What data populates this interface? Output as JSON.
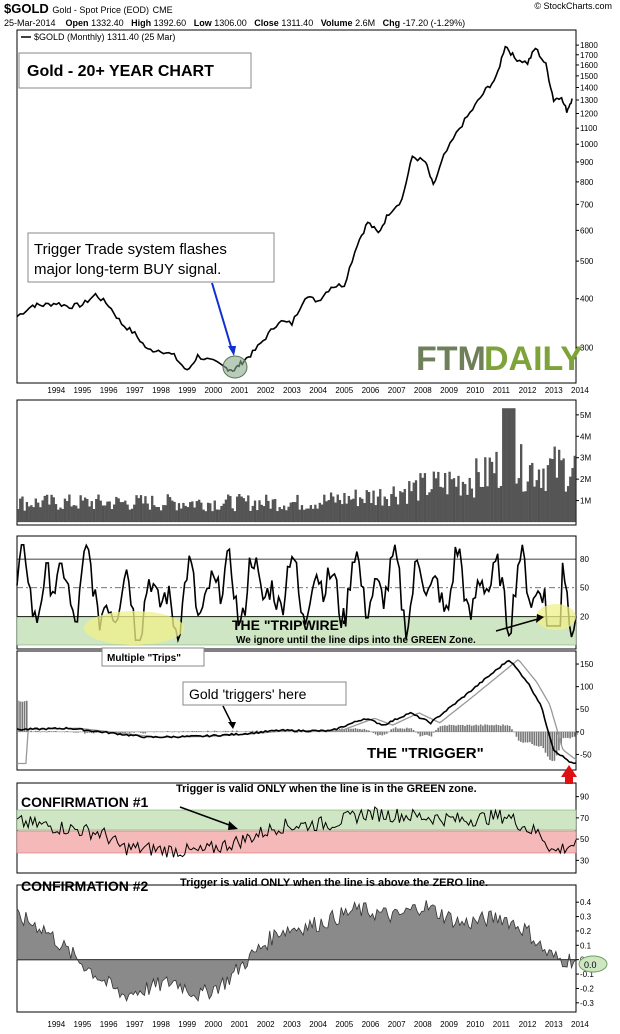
{
  "header": {
    "symbol": "$GOLD",
    "name": "Gold - Spot Price (EOD)",
    "exchange": "CME",
    "date": "25-Mar-2014",
    "open_label": "Open",
    "open": "1332.40",
    "high_label": "High",
    "high": "1392.60",
    "low_label": "Low",
    "low": "1306.00",
    "close_label": "Close",
    "close": "1311.40",
    "volume_label": "Volume",
    "volume": "2.6M",
    "chg_label": "Chg",
    "chg": "-17.20 (-1.29%)",
    "copyright": "© StockCharts.com"
  },
  "legend": "$GOLD (Monthly) 1311.40 (25 Mar)",
  "title_box": "Gold - 20+ YEAR CHART",
  "annotations": {
    "buy_signal": [
      "Trigger Trade system flashes",
      "major long-term BUY signal."
    ],
    "tripwire": "THE \"TRIPWIRE\"",
    "tripwire_note": "We ignore until the line dips into the GREEN Zone.",
    "multiple_trips": "Multiple \"Trips\"",
    "gold_triggers": "Gold 'triggers' here",
    "trigger": "THE \"TRIGGER\"",
    "conf1": "CONFIRMATION #1",
    "conf1_note": "Trigger is valid ONLY when the line is in the GREEN zone.",
    "conf2": "CONFIRMATION #2",
    "conf2_note": "Trigger is valid ONLY when the line is above the ZERO line."
  },
  "logo": {
    "part1": "FTM",
    "part2": "DAILY",
    "color1": "#6e7f5a",
    "color2": "#7da33a"
  },
  "colors": {
    "price": "#000000",
    "green_zone": "#cfe6c4",
    "red_zone": "#f6b9b9",
    "highlight": "#f0f08a",
    "buy_circle": "#8aa88a",
    "arrow_blue": "#1030d0",
    "arrow_red": "#e01010"
  },
  "chart_data": [
    {
      "type": "line",
      "name": "price",
      "series": [
        {
          "name": "$GOLD (Monthly)",
          "x": [
            1993.0,
            1993.6,
            1994.0,
            1994.5,
            1995.0,
            1995.5,
            1996.0,
            1996.5,
            1997.0,
            1997.5,
            1998.0,
            1998.5,
            1999.0,
            1999.5,
            1999.9,
            2000.5,
            2001.0,
            2001.3,
            2001.6,
            2002.0,
            2002.5,
            2003.0,
            2003.5,
            2004.0,
            2004.5,
            2005.0,
            2005.5,
            2006.0,
            2006.4,
            2006.8,
            2007.2,
            2007.7,
            2008.1,
            2008.6,
            2008.9,
            2009.3,
            2009.9,
            2010.4,
            2010.9,
            2011.3,
            2011.65,
            2012.0,
            2012.5,
            2012.8,
            2013.2,
            2013.5,
            2013.75,
            2014.0,
            2014.2
          ],
          "values": [
            360,
            385,
            385,
            390,
            382,
            386,
            410,
            385,
            345,
            325,
            295,
            295,
            285,
            260,
            285,
            275,
            265,
            262,
            275,
            290,
            318,
            350,
            345,
            405,
            395,
            430,
            435,
            555,
            630,
            590,
            665,
            720,
            930,
            900,
            780,
            930,
            1100,
            1230,
            1380,
            1480,
            1800,
            1670,
            1620,
            1770,
            1600,
            1300,
            1330,
            1220,
            1311
          ]
        }
      ],
      "x_ticks": [
        "1994",
        "1995",
        "1996",
        "1997",
        "1998",
        "1999",
        "2000",
        "2001",
        "2002",
        "2003",
        "2004",
        "2005",
        "2006",
        "2007",
        "2008",
        "2009",
        "2010",
        "2011",
        "2012",
        "2013",
        "2014"
      ],
      "y_ticks": [
        300,
        400,
        500,
        600,
        700,
        800,
        900,
        1000,
        1100,
        1200,
        1300,
        1400,
        1500,
        1600,
        1700,
        1800
      ],
      "ylim": [
        250,
        1900
      ],
      "scale": "log"
    },
    {
      "type": "bar",
      "name": "volume",
      "y_ticks": [
        "1M",
        "2M",
        "3M",
        "4M",
        "5M"
      ],
      "ylim": [
        0,
        5.6
      ],
      "note": "monthly volume bars"
    },
    {
      "type": "line",
      "name": "stochastic",
      "y_ticks": [
        20,
        50,
        80
      ],
      "ylim": [
        -10,
        100
      ],
      "green_zone": [
        -10,
        20
      ]
    },
    {
      "type": "line",
      "name": "macd",
      "y_ticks": [
        -50,
        0,
        50,
        100,
        150
      ],
      "ylim": [
        -80,
        170
      ]
    },
    {
      "type": "line",
      "name": "rsi",
      "y_ticks": [
        30,
        50,
        70,
        90
      ],
      "ylim": [
        20,
        100
      ],
      "green_zone": [
        50,
        70
      ],
      "red_zone": [
        30,
        50
      ]
    },
    {
      "type": "area",
      "name": "momentum",
      "y_ticks": [
        "-0.3",
        "-0.2",
        "-0.1",
        "0.0",
        "0.1",
        "0.2",
        "0.3",
        "0.4"
      ],
      "ylim": [
        -0.35,
        0.45
      ],
      "highlight_label": "0.0"
    }
  ]
}
